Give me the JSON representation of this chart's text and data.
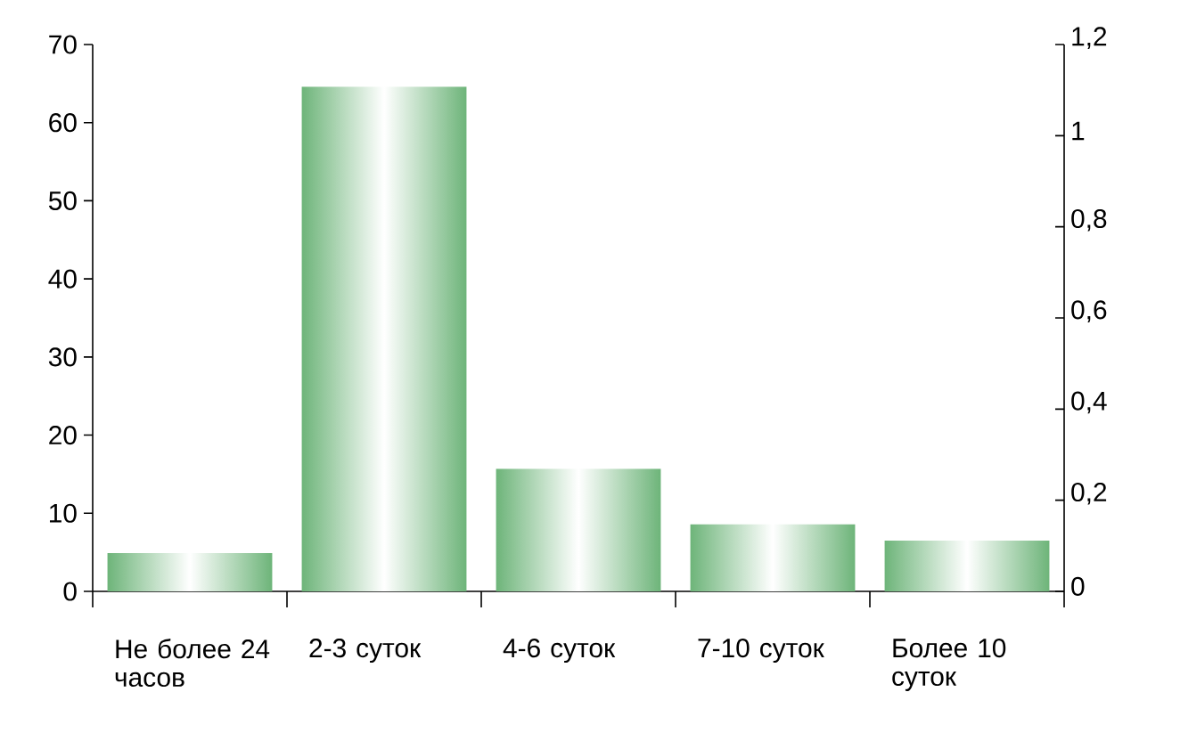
{
  "chart_data": {
    "type": "bar",
    "categories": [
      "Не более 24 часов",
      "2-3 суток",
      "4-6 суток",
      "7-10 суток",
      "Более 10 суток"
    ],
    "values": [
      4.9,
      64.6,
      15.7,
      8.6,
      6.5
    ],
    "color": "#6db479",
    "ylim": [
      0,
      70
    ],
    "yticks": [
      0,
      10,
      20,
      30,
      40,
      50,
      60,
      70
    ],
    "y2lim": [
      0,
      1.2
    ],
    "y2ticks": [
      0,
      {
        "value": 0.2,
        "label": "0,2"
      },
      {
        "value": 0.4,
        "label": "0,4"
      },
      {
        "value": 0.6,
        "label": "0,6"
      },
      {
        "value": 0.8,
        "label": "0,8"
      },
      1,
      {
        "value": 1.2,
        "label": "1,2"
      }
    ]
  }
}
